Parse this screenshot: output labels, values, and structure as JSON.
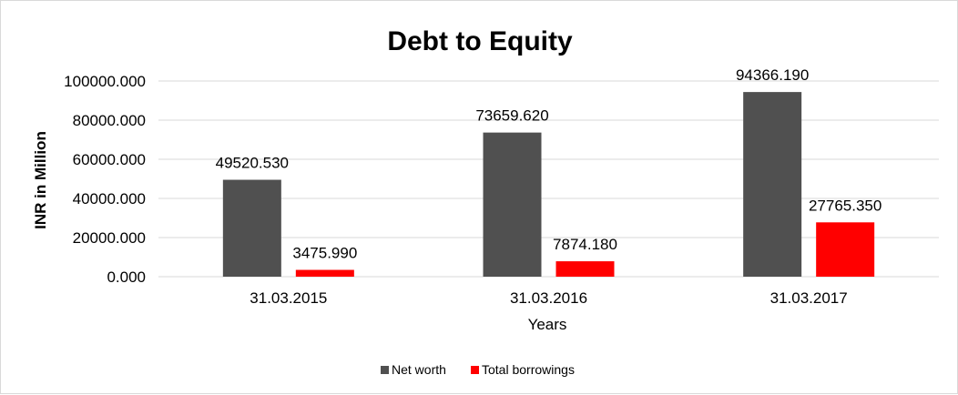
{
  "chart_data": {
    "type": "bar",
    "title": "Debt to Equity",
    "xlabel": "Years",
    "ylabel": "INR in Million",
    "categories": [
      "31.03.2015",
      "31.03.2016",
      "31.03.2017"
    ],
    "series": [
      {
        "name": "Net worth",
        "color": "#505050",
        "values": [
          49520.53,
          73659.62,
          94366.19
        ],
        "labels": [
          "49520.530",
          "73659.620",
          "94366.190"
        ]
      },
      {
        "name": "Total borrowings",
        "color": "#ff0000",
        "values": [
          3475.99,
          7874.18,
          27765.35
        ],
        "labels": [
          "3475.990",
          "7874.180",
          "27765.350"
        ]
      }
    ],
    "ylim": [
      0,
      100000
    ],
    "yticks": [
      0,
      20000,
      40000,
      60000,
      80000,
      100000
    ],
    "ytick_labels": [
      "0.000",
      "20000.000",
      "40000.000",
      "60000.000",
      "80000.000",
      "100000.000"
    ],
    "grid": true,
    "gridline_color": "#d9d9d9",
    "legend_position": "bottom"
  }
}
